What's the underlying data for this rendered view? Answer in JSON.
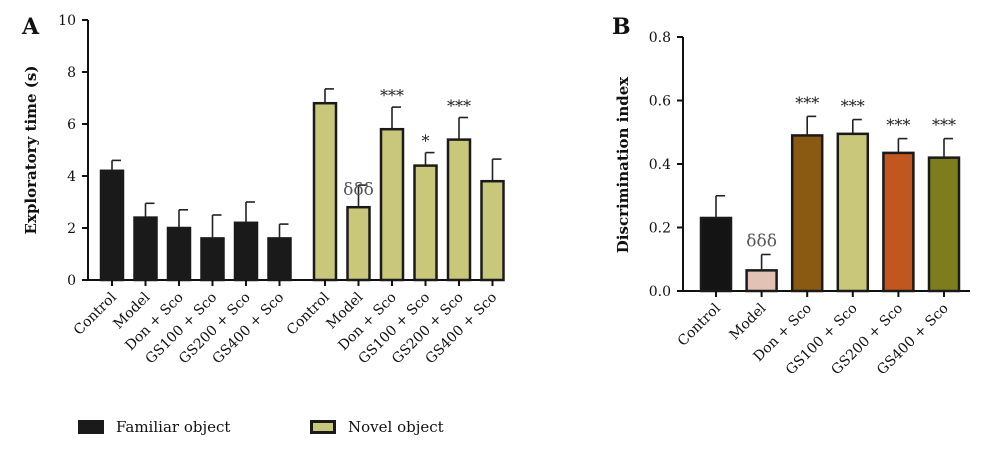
{
  "chart_data": [
    {
      "panel_label": "A",
      "type": "bar",
      "ylabel": "Exploratory time (s)",
      "ylim": [
        0,
        10
      ],
      "yticks": [
        0,
        2,
        4,
        6,
        8,
        10
      ],
      "categories": [
        "Control",
        "Model",
        "Don + Sco",
        "GS100 + Sco",
        "GS200 + Sco",
        "GS400 + Sco"
      ],
      "series": [
        {
          "name": "Familiar object",
          "color": "#1a1a1a",
          "values": [
            4.2,
            2.4,
            2.0,
            1.6,
            2.2,
            1.6
          ],
          "errors": [
            0.4,
            0.55,
            0.7,
            0.9,
            0.8,
            0.55
          ],
          "annotations": [
            "",
            "",
            "",
            "",
            "",
            ""
          ]
        },
        {
          "name": "Novel object",
          "color": "#c8c77a",
          "values": [
            6.8,
            2.8,
            5.8,
            4.4,
            5.4,
            3.8
          ],
          "errors": [
            0.55,
            0.85,
            0.85,
            0.5,
            0.85,
            0.85
          ],
          "annotations": [
            "",
            "δδδ",
            "***",
            "*",
            "***",
            ""
          ]
        }
      ],
      "legend": [
        "Familiar object",
        "Novel object"
      ]
    },
    {
      "panel_label": "B",
      "type": "bar",
      "ylabel": "Discrimination index",
      "ylim": [
        0,
        0.8
      ],
      "yticks": [
        "0.0",
        "0.2",
        "0.4",
        "0.6",
        "0.8"
      ],
      "categories": [
        "Control",
        "Model",
        "Don + Sco",
        "GS100 + Sco",
        "GS200 + Sco",
        "GS400 + Sco"
      ],
      "values": [
        0.23,
        0.065,
        0.49,
        0.495,
        0.435,
        0.42
      ],
      "errors": [
        0.07,
        0.05,
        0.06,
        0.045,
        0.045,
        0.06
      ],
      "colors": [
        "#141414",
        "#e3c2b6",
        "#8a5a12",
        "#c8c77a",
        "#c1561f",
        "#7d7d1d"
      ],
      "annotations": [
        "",
        "δδδ",
        "***",
        "***",
        "***",
        "***"
      ]
    }
  ]
}
